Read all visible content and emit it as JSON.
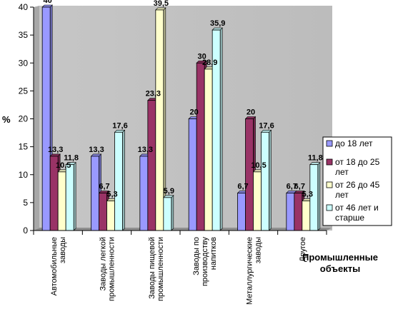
{
  "chart_data": {
    "type": "bar",
    "title": "",
    "ylabel": "%",
    "xlabel": "Промышленные объекты",
    "ylim": [
      0,
      40
    ],
    "yticks": [
      "0",
      "5",
      "10",
      "15",
      "20",
      "25",
      "30",
      "35",
      "40"
    ],
    "grid": false,
    "legend_position": "right",
    "categories": [
      [
        "Автомобильные",
        "заводы"
      ],
      [
        "Заводы легкой",
        "промышленности"
      ],
      [
        "Заводы пищевой",
        "промышленности"
      ],
      [
        "Заводы по",
        "производству",
        "напитков"
      ],
      [
        "Металлургические",
        "заводы"
      ],
      [
        "Другое"
      ]
    ],
    "series": [
      {
        "name": "до 18 лет",
        "legend_lines": [
          "до 18 лет"
        ],
        "color": "#9999ff",
        "values": [
          40,
          13.3,
          13.3,
          20,
          6.7,
          6.7
        ],
        "labels": [
          "40",
          "13,3",
          "13,3",
          "20",
          "6,7",
          "6,7"
        ]
      },
      {
        "name": "от 18 до 25 лет",
        "legend_lines": [
          "от 18 до 25",
          "лет"
        ],
        "color": "#993366",
        "values": [
          13.3,
          6.7,
          23.3,
          30,
          20,
          6.7
        ],
        "labels": [
          "13,3",
          "6,7",
          "23,3",
          "30",
          "20",
          "6,7"
        ]
      },
      {
        "name": "от 26 до 45 лет",
        "legend_lines": [
          "от 26 до 45",
          "лет"
        ],
        "color": "#ffffcc",
        "values": [
          10.5,
          5.3,
          39.5,
          28.9,
          10.5,
          5.3
        ],
        "labels": [
          "10,5",
          "5,3",
          "39,5",
          "28,9",
          "10,5",
          "5,3"
        ]
      },
      {
        "name": "от 46 лет и старше",
        "legend_lines": [
          "от 46 лет и",
          "старше"
        ],
        "color": "#ccffff",
        "values": [
          11.8,
          17.6,
          5.9,
          35.9,
          17.6,
          11.8
        ],
        "labels": [
          "11,8",
          "17,6",
          "5,9",
          "35,9",
          "17,6",
          "11,8"
        ]
      }
    ]
  }
}
